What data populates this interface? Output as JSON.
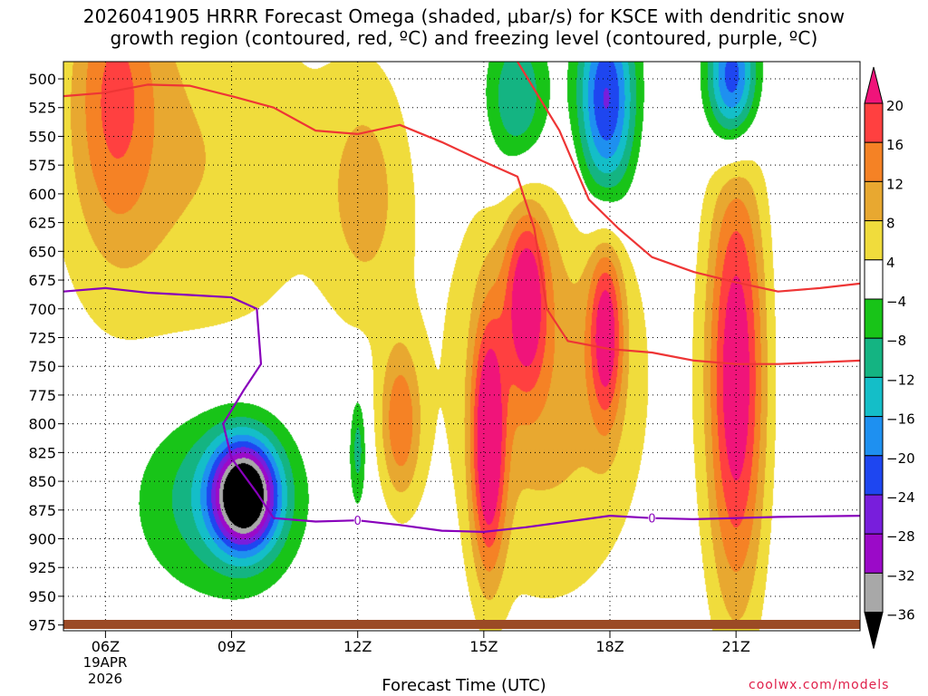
{
  "chart_data": {
    "type": "heatmap",
    "title_line1": "2026041905 HRRR Forecast Omega (shaded, μbar/s) for KSCE with dendritic snow",
    "title_line2": "growth region (contoured, red, ºC) and freezing level (contoured, purple, ºC)",
    "xlabel": "Forecast Time (UTC)",
    "ylabel": "",
    "credit": "coolwx.com/models",
    "x_ticks": [
      {
        "label": "06Z",
        "hour": 6
      },
      {
        "label": "09Z",
        "hour": 9
      },
      {
        "label": "12Z",
        "hour": 12
      },
      {
        "label": "15Z",
        "hour": 15
      },
      {
        "label": "18Z",
        "hour": 18
      },
      {
        "label": "21Z",
        "hour": 21
      }
    ],
    "date_label_1": "19APR",
    "date_label_2": "2026",
    "x_range": [
      5.0,
      23.95
    ],
    "y_range": [
      485,
      980
    ],
    "y_ticks": [
      500,
      525,
      550,
      575,
      600,
      625,
      650,
      675,
      700,
      725,
      750,
      775,
      800,
      825,
      850,
      875,
      900,
      925,
      950,
      975
    ],
    "colorbar": {
      "labels": [
        "20",
        "16",
        "12",
        "8",
        "4",
        "−4",
        "−8",
        "−12",
        "−16",
        "−20",
        "−24",
        "−28",
        "−32",
        "−36"
      ],
      "levels": [
        20,
        16,
        12,
        8,
        4,
        -4,
        -8,
        -12,
        -16,
        -20,
        -24,
        -28,
        -32,
        -36
      ],
      "colors": [
        "#f0147a",
        "#ff4040",
        "#f58225",
        "#e8a830",
        "#f0dc3c",
        "#ffffff",
        "#18c418",
        "#14b482",
        "#14bec8",
        "#1e90f0",
        "#1e46f0",
        "#781edc",
        "#9b0ac8",
        "#a8a8a8"
      ],
      "top_color": "#f0147a",
      "bottom_color": "#000000"
    },
    "omega_centers": [
      {
        "hour": 6.2,
        "p": 510,
        "rx": 1.0,
        "ry": 130,
        "peak": 12
      },
      {
        "hour": 8.0,
        "p": 570,
        "rx": 3.5,
        "ry": 200,
        "peak": 8
      },
      {
        "hour": 12.2,
        "p": 600,
        "rx": 1.0,
        "ry": 110,
        "peak": 8
      },
      {
        "hour": 9.3,
        "p": 862,
        "rx": 0.75,
        "ry": 45,
        "peak": -40
      },
      {
        "hour": 8.7,
        "p": 860,
        "rx": 2.0,
        "ry": 85,
        "peak": -12
      },
      {
        "hour": 12.0,
        "p": 820,
        "rx": 0.2,
        "ry": 50,
        "peak": -10
      },
      {
        "hour": 15.8,
        "p": 520,
        "rx": 0.8,
        "ry": 70,
        "peak": -14
      },
      {
        "hour": 17.9,
        "p": 520,
        "rx": 0.7,
        "ry": 90,
        "peak": -26
      },
      {
        "hour": 20.9,
        "p": 500,
        "rx": 0.6,
        "ry": 60,
        "peak": -26
      },
      {
        "hour": 15.1,
        "p": 820,
        "rx": 0.4,
        "ry": 110,
        "peak": 22
      },
      {
        "hour": 16.0,
        "p": 690,
        "rx": 0.5,
        "ry": 80,
        "peak": 18
      },
      {
        "hour": 17.9,
        "p": 720,
        "rx": 0.4,
        "ry": 80,
        "peak": 18
      },
      {
        "hour": 21.0,
        "p": 760,
        "rx": 0.7,
        "ry": 200,
        "peak": 24
      },
      {
        "hour": 13.0,
        "p": 800,
        "rx": 0.5,
        "ry": 70,
        "peak": 14
      },
      {
        "hour": 16.5,
        "p": 760,
        "rx": 2.5,
        "ry": 200,
        "peak": 10
      }
    ],
    "series": [
      {
        "name": "dendritic snow growth region (-15 ºC), red",
        "color": "#ee3535",
        "points": [
          [
            5.0,
            515
          ],
          [
            6.0,
            512
          ],
          [
            7.0,
            505
          ],
          [
            8.0,
            506
          ],
          [
            9.0,
            515
          ],
          [
            10.0,
            525
          ],
          [
            11.0,
            545
          ],
          [
            12.0,
            548
          ],
          [
            13.0,
            540
          ],
          [
            14.0,
            555
          ],
          [
            15.0,
            572
          ],
          [
            15.8,
            585
          ],
          [
            16.2,
            630
          ],
          [
            16.5,
            700
          ],
          [
            17.0,
            728
          ],
          [
            18.0,
            735
          ],
          [
            19.0,
            738
          ],
          [
            20.0,
            745
          ],
          [
            21.0,
            748
          ],
          [
            22.0,
            748
          ],
          [
            23.95,
            745
          ]
        ]
      },
      {
        "name": "dendritic snow growth region right branch",
        "color": "#ee3535",
        "points": [
          [
            15.8,
            485
          ],
          [
            16.8,
            545
          ],
          [
            17.5,
            605
          ],
          [
            18.2,
            630
          ],
          [
            19.0,
            655
          ],
          [
            20.0,
            668
          ],
          [
            21.0,
            677
          ],
          [
            22.0,
            685
          ],
          [
            23.0,
            682
          ],
          [
            23.95,
            678
          ]
        ]
      },
      {
        "name": "freezing level (0 ºC), purple",
        "color": "#8800bb",
        "points": [
          [
            5.0,
            685
          ],
          [
            6.0,
            682
          ],
          [
            7.0,
            686
          ],
          [
            8.0,
            688
          ],
          [
            9.0,
            690
          ],
          [
            9.6,
            700
          ],
          [
            9.7,
            748
          ],
          [
            9.3,
            770
          ],
          [
            8.8,
            800
          ],
          [
            9.0,
            830
          ],
          [
            9.6,
            860
          ],
          [
            10.0,
            882
          ],
          [
            11.0,
            885
          ],
          [
            12.0,
            884
          ],
          [
            13.0,
            888
          ],
          [
            14.0,
            893
          ],
          [
            15.0,
            894
          ],
          [
            16.0,
            890
          ],
          [
            17.0,
            885
          ],
          [
            18.0,
            880
          ],
          [
            19.0,
            882
          ],
          [
            20.0,
            883
          ],
          [
            21.0,
            882
          ],
          [
            22.0,
            881
          ],
          [
            23.95,
            880
          ]
        ]
      }
    ],
    "contour_labels": [
      {
        "text": "0",
        "hour": 12.0,
        "p": 884
      },
      {
        "text": "0",
        "hour": 19.0,
        "p": 882
      }
    ]
  }
}
